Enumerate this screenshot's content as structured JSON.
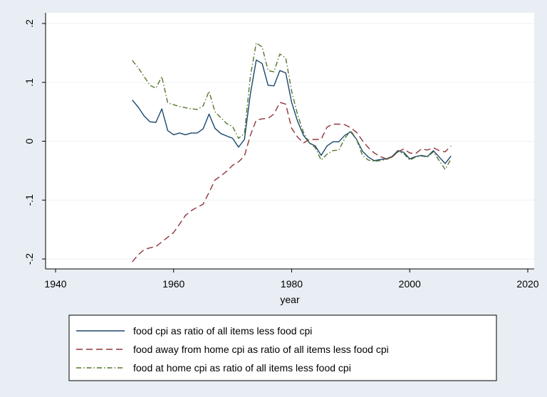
{
  "chart_data": {
    "type": "line",
    "title": "",
    "xlabel": "year",
    "ylabel": "",
    "xlim": [
      1940,
      2020
    ],
    "ylim": [
      -0.2,
      0.2
    ],
    "x_ticks": [
      1940,
      1960,
      1980,
      2000,
      2020
    ],
    "x_tick_labels": [
      "1940",
      "1960",
      "1980",
      "2000",
      "2020"
    ],
    "y_ticks": [
      -0.2,
      -0.1,
      0,
      0.1,
      0.2
    ],
    "y_tick_labels": [
      "-.2",
      "-.1",
      "0",
      ".1",
      ".2"
    ],
    "grid": "horizontal",
    "legend_position": "bottom",
    "x": [
      1953,
      1954,
      1955,
      1956,
      1957,
      1958,
      1959,
      1960,
      1961,
      1962,
      1963,
      1964,
      1965,
      1966,
      1967,
      1968,
      1969,
      1970,
      1971,
      1972,
      1973,
      1974,
      1975,
      1976,
      1977,
      1978,
      1979,
      1980,
      1981,
      1982,
      1983,
      1984,
      1985,
      1986,
      1987,
      1988,
      1989,
      1990,
      1991,
      1992,
      1993,
      1994,
      1995,
      1996,
      1997,
      1998,
      1999,
      2000,
      2001,
      2002,
      2003,
      2004,
      2005,
      2006,
      2007
    ],
    "series": [
      {
        "name": "food cpi as ratio of all items less food cpi",
        "color": "#1a476f",
        "dash": "solid",
        "values": [
          0.07,
          0.058,
          0.043,
          0.033,
          0.032,
          0.055,
          0.018,
          0.011,
          0.014,
          0.011,
          0.014,
          0.014,
          0.021,
          0.046,
          0.022,
          0.013,
          0.009,
          0.005,
          -0.01,
          0.003,
          0.08,
          0.138,
          0.132,
          0.095,
          0.094,
          0.12,
          0.116,
          0.066,
          0.034,
          0.01,
          -0.003,
          -0.008,
          -0.024,
          -0.008,
          -0.001,
          -0.001,
          0.01,
          0.016,
          0.003,
          -0.017,
          -0.027,
          -0.033,
          -0.031,
          -0.03,
          -0.026,
          -0.016,
          -0.019,
          -0.03,
          -0.026,
          -0.024,
          -0.026,
          -0.016,
          -0.027,
          -0.038,
          -0.025
        ]
      },
      {
        "name": "food away from home cpi as ratio of all items less food cpi",
        "color": "#90353b",
        "dash": "dashed",
        "values": [
          -0.205,
          -0.193,
          -0.184,
          -0.181,
          -0.179,
          -0.171,
          -0.163,
          -0.155,
          -0.141,
          -0.126,
          -0.118,
          -0.112,
          -0.107,
          -0.087,
          -0.066,
          -0.059,
          -0.051,
          -0.041,
          -0.035,
          -0.025,
          0.01,
          0.036,
          0.038,
          0.039,
          0.046,
          0.066,
          0.063,
          0.022,
          0.007,
          -0.003,
          0.003,
          0.003,
          0.003,
          0.024,
          0.029,
          0.029,
          0.028,
          0.023,
          0.015,
          0.001,
          -0.011,
          -0.02,
          -0.026,
          -0.03,
          -0.027,
          -0.018,
          -0.013,
          -0.02,
          -0.021,
          -0.013,
          -0.015,
          -0.011,
          -0.016,
          -0.018,
          -0.008
        ]
      },
      {
        "name": "food at home cpi as ratio of all items less food cpi",
        "color": "#55752f",
        "dash": "dashdot",
        "values": [
          0.137,
          0.125,
          0.11,
          0.095,
          0.09,
          0.11,
          0.065,
          0.062,
          0.059,
          0.057,
          0.055,
          0.054,
          0.06,
          0.085,
          0.05,
          0.04,
          0.03,
          0.025,
          0.005,
          0.013,
          0.11,
          0.167,
          0.16,
          0.12,
          0.118,
          0.148,
          0.141,
          0.085,
          0.045,
          0.015,
          -0.003,
          -0.011,
          -0.032,
          -0.022,
          -0.016,
          -0.015,
          0.005,
          0.018,
          0.003,
          -0.024,
          -0.032,
          -0.034,
          -0.033,
          -0.031,
          -0.027,
          -0.018,
          -0.021,
          -0.032,
          -0.027,
          -0.025,
          -0.027,
          -0.018,
          -0.033,
          -0.048,
          -0.03
        ]
      }
    ]
  }
}
